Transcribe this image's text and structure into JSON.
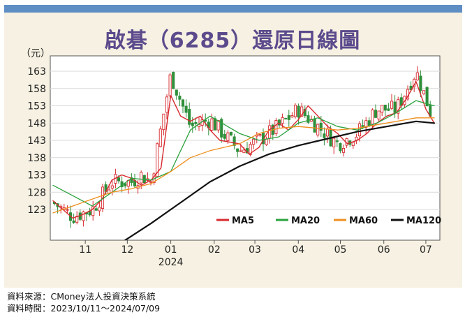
{
  "title": "啟碁（6285）還原日線圖",
  "unit_label": "（元）",
  "footer": {
    "source": "資料來源：CMoney法人投資決策系統",
    "period": "資料時間：2023/10/11～2024/07/09"
  },
  "colors": {
    "up": "#d7292e",
    "down": "#2f8f3b",
    "ma5": "#d7292e",
    "ma20": "#2aa23c",
    "ma60": "#ee8f1f",
    "ma120": "#111111",
    "title": "#5b4a8c",
    "bar": "#5f8ec4"
  },
  "chart_data": {
    "type": "candlestick",
    "title": "啟碁（6285）還原日線圖",
    "ylabel": "（元）",
    "ylim": [
      114,
      168
    ],
    "y_ticks": [
      123,
      128,
      133,
      138,
      143,
      148,
      153,
      158,
      163
    ],
    "x_ticks": [
      "11",
      "12",
      "01",
      "02",
      "03",
      "04",
      "05",
      "06",
      "07"
    ],
    "x_year_label": "2024",
    "x_range": [
      "2023/10/11",
      "2024/07/09"
    ],
    "legend": {
      "placement": "bottom-right",
      "entries": [
        "MA5",
        "MA20",
        "MA60",
        "MA120"
      ]
    },
    "series": [
      {
        "name": "MA5",
        "x": [
          "2023-10-11",
          "2023-10-18",
          "2023-10-25",
          "2023-11-01",
          "2023-11-08",
          "2023-11-15",
          "2023-11-22",
          "2023-11-29",
          "2023-12-06",
          "2023-12-13",
          "2023-12-20",
          "2023-12-27",
          "2024-01-03",
          "2024-01-10",
          "2024-01-17",
          "2024-01-24",
          "2024-01-31",
          "2024-02-07",
          "2024-02-21",
          "2024-02-28",
          "2024-03-06",
          "2024-03-13",
          "2024-03-20",
          "2024-03-27",
          "2024-04-03",
          "2024-04-10",
          "2024-04-17",
          "2024-04-24",
          "2024-05-01",
          "2024-05-08",
          "2024-05-15",
          "2024-05-22",
          "2024-05-29",
          "2024-06-05",
          "2024-06-12",
          "2024-06-19",
          "2024-06-26",
          "2024-07-03",
          "2024-07-09"
        ],
        "values": [
          125.5,
          123,
          120.5,
          121.5,
          123,
          126,
          131.5,
          133,
          132,
          130,
          131.5,
          135,
          156,
          150,
          148.5,
          150,
          146,
          143,
          142,
          139,
          141,
          146,
          148,
          146,
          149,
          153,
          150,
          147,
          145,
          142,
          143,
          145,
          148,
          150,
          151,
          155,
          160,
          152,
          148
        ]
      },
      {
        "name": "MA20",
        "x": [
          "2023-10-11",
          "2023-10-25",
          "2023-11-08",
          "2023-11-22",
          "2023-12-06",
          "2023-12-20",
          "2024-01-03",
          "2024-01-17",
          "2024-01-31",
          "2024-02-21",
          "2024-03-06",
          "2024-03-20",
          "2024-04-03",
          "2024-04-17",
          "2024-05-01",
          "2024-05-15",
          "2024-05-29",
          "2024-06-12",
          "2024-06-26",
          "2024-07-09"
        ],
        "values": [
          130,
          127,
          124,
          128,
          132,
          131.5,
          134,
          146,
          150,
          145,
          143,
          144,
          148,
          149.5,
          147,
          146,
          148,
          151,
          154.5,
          153
        ]
      },
      {
        "name": "MA60",
        "x": [
          "2023-10-11",
          "2023-10-25",
          "2023-11-08",
          "2023-11-22",
          "2023-12-06",
          "2023-12-20",
          "2024-01-03",
          "2024-01-17",
          "2024-01-31",
          "2024-02-21",
          "2024-03-06",
          "2024-03-20",
          "2024-04-03",
          "2024-04-17",
          "2024-05-01",
          "2024-05-15",
          "2024-05-29",
          "2024-06-12",
          "2024-06-26",
          "2024-07-09"
        ],
        "values": [
          122,
          124,
          126,
          128,
          129,
          130.5,
          134,
          138,
          140,
          142,
          145,
          146.5,
          147,
          146.5,
          146,
          146.5,
          147.5,
          148.5,
          149.5,
          149.5
        ]
      },
      {
        "name": "MA120",
        "x": [
          "2023-12-01",
          "2023-12-20",
          "2024-01-10",
          "2024-01-31",
          "2024-02-21",
          "2024-03-13",
          "2024-04-03",
          "2024-04-24",
          "2024-05-15",
          "2024-06-05",
          "2024-06-26",
          "2024-07-09"
        ],
        "values": [
          114,
          119,
          125,
          131,
          135.5,
          139,
          141.5,
          143.5,
          145.5,
          147,
          148.5,
          148
        ]
      },
      {
        "name": "candles",
        "x": [
          "2023-10-11",
          "2023-10-25",
          "2023-11-08",
          "2023-11-22",
          "2023-12-06",
          "2023-12-13",
          "2023-12-20",
          "2024-01-03",
          "2024-01-17",
          "2024-01-31",
          "2024-02-21",
          "2024-03-06",
          "2024-03-20",
          "2024-04-03",
          "2024-04-17",
          "2024-05-01",
          "2024-05-15",
          "2024-05-29",
          "2024-06-12",
          "2024-06-26",
          "2024-07-09"
        ],
        "values": [
          125,
          121,
          123,
          131,
          131,
          133,
          131,
          162,
          147,
          149,
          140,
          143,
          147,
          152,
          147,
          142,
          145,
          152,
          152,
          163,
          148
        ]
      }
    ]
  }
}
